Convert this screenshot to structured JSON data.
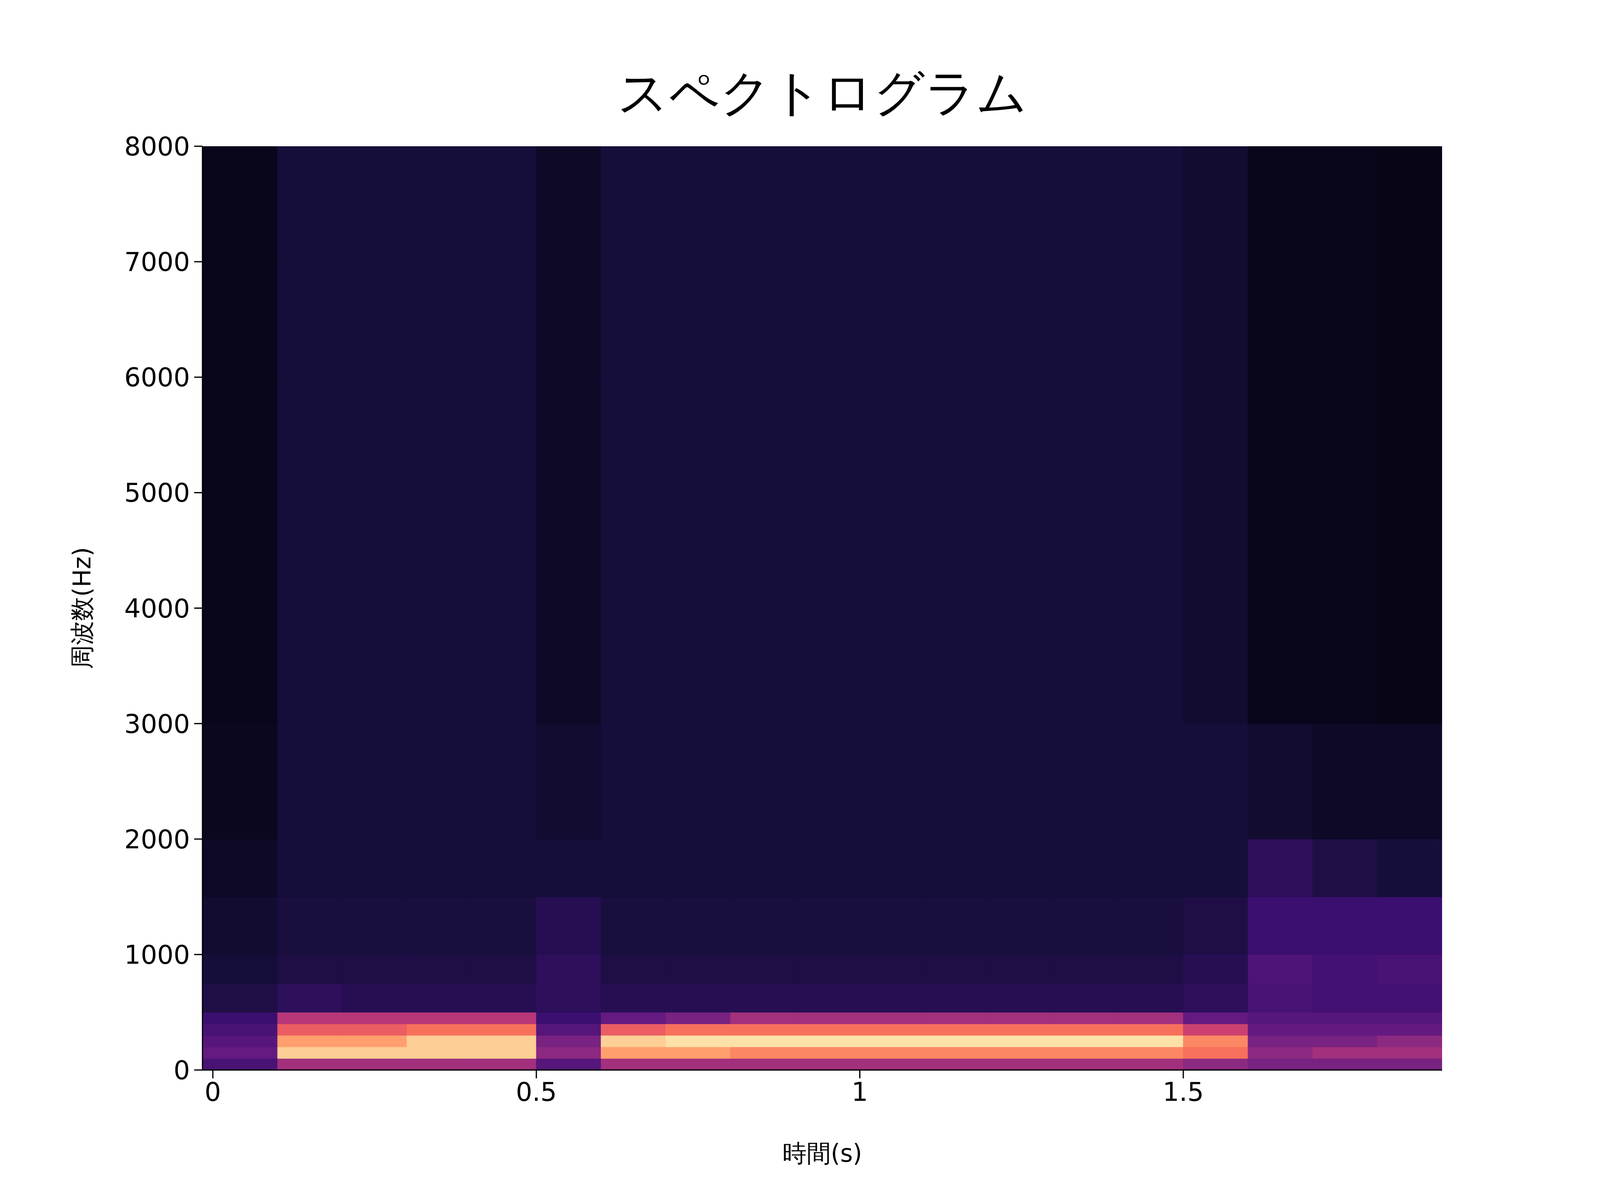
{
  "chart_data": {
    "type": "heatmap",
    "title": "スペクトログラム",
    "x_label": "時間(s)",
    "y_label": "周波数(Hz)",
    "xlim": [
      -0.016,
      1.9
    ],
    "ylim": [
      0,
      8000
    ],
    "xticks": [
      0,
      0.5,
      1,
      1.5
    ],
    "yticks": [
      0,
      1000,
      2000,
      3000,
      4000,
      5000,
      6000,
      7000,
      8000
    ],
    "x_bins": [
      -0.016,
      0.1,
      0.2,
      0.3,
      0.4,
      0.5,
      0.6,
      0.7,
      0.8,
      0.9,
      1.0,
      1.1,
      1.2,
      1.3,
      1.4,
      1.5,
      1.6,
      1.7,
      1.8,
      1.9
    ],
    "y_bins": [
      0,
      100,
      200,
      300,
      400,
      500,
      750,
      1000,
      1500,
      2000,
      3000,
      4000,
      5000,
      6000,
      7000,
      8000
    ],
    "cells": [
      [
        0.3,
        0.55,
        0.55,
        0.55,
        0.55,
        0.35,
        0.55,
        0.55,
        0.55,
        0.55,
        0.55,
        0.55,
        0.55,
        0.55,
        0.55,
        0.5,
        0.45,
        0.45,
        0.45
      ],
      [
        0.4,
        0.95,
        0.95,
        0.95,
        0.95,
        0.5,
        0.9,
        0.9,
        0.85,
        0.85,
        0.85,
        0.85,
        0.85,
        0.85,
        0.85,
        0.8,
        0.5,
        0.55,
        0.55
      ],
      [
        0.35,
        0.9,
        0.9,
        0.95,
        0.95,
        0.45,
        0.95,
        0.97,
        0.97,
        0.97,
        0.97,
        0.97,
        0.97,
        0.97,
        0.97,
        0.85,
        0.45,
        0.45,
        0.5
      ],
      [
        0.3,
        0.75,
        0.75,
        0.8,
        0.8,
        0.35,
        0.75,
        0.8,
        0.8,
        0.8,
        0.8,
        0.8,
        0.8,
        0.8,
        0.8,
        0.65,
        0.4,
        0.4,
        0.4
      ],
      [
        0.25,
        0.6,
        0.6,
        0.6,
        0.6,
        0.25,
        0.4,
        0.45,
        0.55,
        0.55,
        0.55,
        0.55,
        0.55,
        0.55,
        0.55,
        0.4,
        0.35,
        0.35,
        0.35
      ],
      [
        0.15,
        0.2,
        0.18,
        0.18,
        0.18,
        0.2,
        0.18,
        0.18,
        0.18,
        0.18,
        0.18,
        0.18,
        0.18,
        0.18,
        0.18,
        0.2,
        0.3,
        0.28,
        0.28
      ],
      [
        0.12,
        0.15,
        0.15,
        0.15,
        0.15,
        0.2,
        0.15,
        0.15,
        0.15,
        0.15,
        0.15,
        0.15,
        0.15,
        0.15,
        0.15,
        0.18,
        0.32,
        0.28,
        0.3
      ],
      [
        0.1,
        0.13,
        0.13,
        0.13,
        0.13,
        0.18,
        0.13,
        0.13,
        0.13,
        0.13,
        0.13,
        0.13,
        0.13,
        0.13,
        0.13,
        0.15,
        0.25,
        0.25,
        0.25
      ],
      [
        0.08,
        0.12,
        0.12,
        0.12,
        0.12,
        0.12,
        0.12,
        0.12,
        0.12,
        0.12,
        0.12,
        0.12,
        0.12,
        0.12,
        0.12,
        0.12,
        0.2,
        0.15,
        0.12
      ],
      [
        0.06,
        0.12,
        0.12,
        0.12,
        0.12,
        0.1,
        0.12,
        0.12,
        0.12,
        0.12,
        0.12,
        0.12,
        0.12,
        0.12,
        0.12,
        0.12,
        0.1,
        0.08,
        0.08
      ],
      [
        0.05,
        0.12,
        0.12,
        0.12,
        0.12,
        0.08,
        0.12,
        0.12,
        0.12,
        0.12,
        0.12,
        0.12,
        0.12,
        0.12,
        0.12,
        0.1,
        0.05,
        0.05,
        0.04
      ],
      [
        0.05,
        0.12,
        0.12,
        0.12,
        0.12,
        0.08,
        0.12,
        0.12,
        0.12,
        0.12,
        0.12,
        0.12,
        0.12,
        0.12,
        0.12,
        0.1,
        0.05,
        0.05,
        0.04
      ],
      [
        0.05,
        0.12,
        0.12,
        0.12,
        0.12,
        0.08,
        0.12,
        0.12,
        0.12,
        0.12,
        0.12,
        0.12,
        0.12,
        0.12,
        0.12,
        0.1,
        0.05,
        0.05,
        0.04
      ],
      [
        0.05,
        0.12,
        0.12,
        0.12,
        0.12,
        0.08,
        0.12,
        0.12,
        0.12,
        0.12,
        0.12,
        0.12,
        0.12,
        0.12,
        0.12,
        0.1,
        0.05,
        0.05,
        0.04
      ],
      [
        0.05,
        0.12,
        0.12,
        0.12,
        0.12,
        0.08,
        0.12,
        0.12,
        0.12,
        0.12,
        0.12,
        0.12,
        0.12,
        0.12,
        0.12,
        0.1,
        0.05,
        0.05,
        0.04
      ]
    ]
  }
}
